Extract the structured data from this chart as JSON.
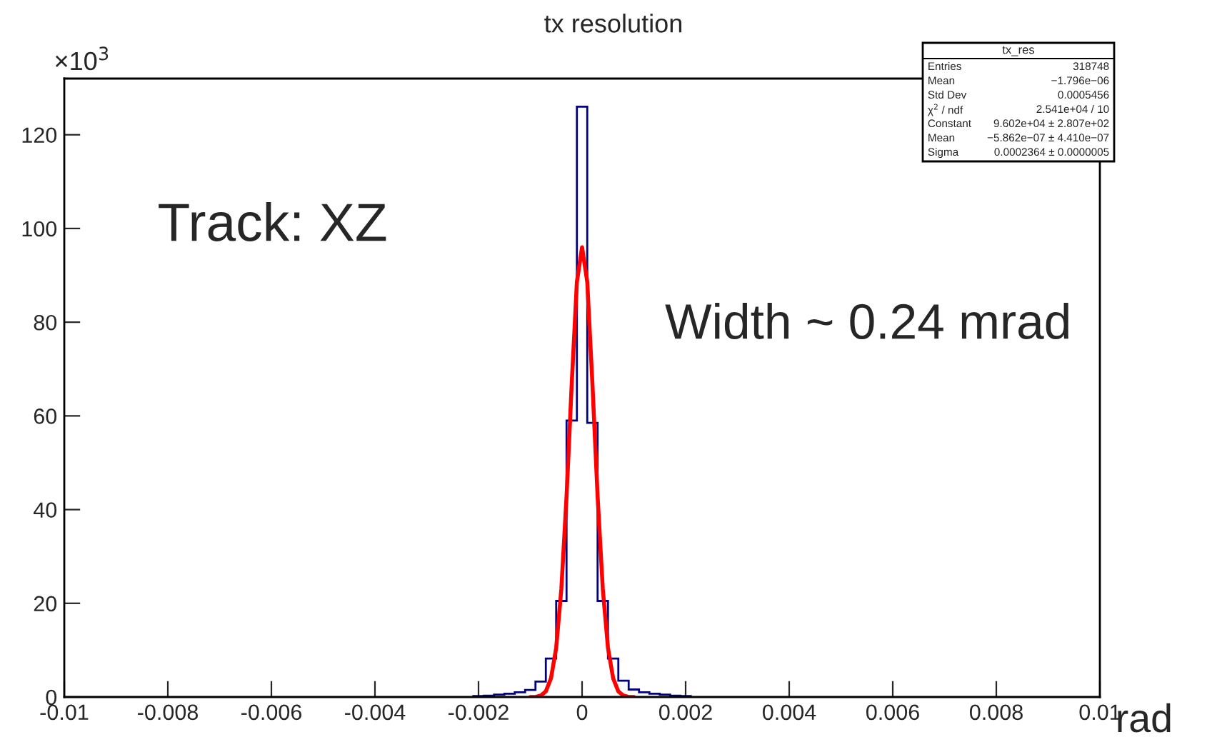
{
  "chart_data": {
    "type": "histogram",
    "title": "tx resolution",
    "xlabel": "rad",
    "ylabel": "×10$^{3}$",
    "bins": [
      -0.0021,
      -0.0019,
      -0.0017,
      -0.0015,
      -0.0013,
      -0.0011,
      -0.0009,
      -0.0007,
      -0.0005,
      -0.0003,
      -0.0001,
      0.0001,
      0.0003,
      0.0005,
      0.0007,
      0.0009,
      0.0011,
      0.0013,
      0.0015,
      0.0017,
      0.0019,
      0.0021
    ],
    "values": [
      0.2,
      0.3,
      0.5,
      0.7,
      1.0,
      1.5,
      3.3,
      8.2,
      20.5,
      59,
      126,
      58.5,
      20.5,
      8.2,
      3.5,
      1.6,
      1.0,
      0.7,
      0.5,
      0.3,
      0.2
    ],
    "color": "#000080",
    "series": [
      {
        "type": "line",
        "color": "#ff0000",
        "x": [
          -0.001,
          -0.0009,
          -0.0008,
          -0.0007,
          -0.0006,
          -0.0005,
          -0.0004,
          -0.0003,
          -0.0002,
          -0.0001,
          0,
          0.0001,
          0.0002,
          0.0003,
          0.0004,
          0.0005,
          0.0006,
          0.0007,
          0.0008,
          0.0009,
          0.001
        ],
        "values": [
          0,
          0,
          0.3,
          1.2,
          4.0,
          10.5,
          23.1,
          42.8,
          66.8,
          88.6,
          96,
          88.6,
          66.8,
          42.8,
          23.1,
          10.5,
          4.0,
          1.2,
          0.3,
          0,
          0
        ]
      }
    ],
    "xlim": [
      -0.01,
      0.01
    ],
    "xticks": [
      {
        "value": -0.01,
        "label": "-0.01"
      },
      {
        "value": -0.008,
        "label": "-0.008"
      },
      {
        "value": -0.006,
        "label": "-0.006"
      },
      {
        "value": -0.004,
        "label": "-0.004"
      },
      {
        "value": -0.002,
        "label": "-0.002"
      },
      0,
      {
        "value": 0.002,
        "label": "0.002"
      },
      {
        "value": 0.004,
        "label": "0.004"
      },
      {
        "value": 0.006,
        "label": "0.006"
      },
      {
        "value": 0.008,
        "label": "0.008"
      },
      {
        "value": 0.01,
        "label": "0.01"
      }
    ],
    "ylim": [
      0,
      132
    ],
    "yticks": [
      0,
      20,
      40,
      60,
      80,
      100,
      120
    ],
    "grid": false,
    "annotations": [
      "Track: XZ",
      "Width ~ 0.24 mrad",
      "tx_res",
      "Entries",
      "318748",
      "Mean",
      "−1.796e−06",
      "Std Dev",
      "0.0005456",
      "χ$^{2}$ / ndf",
      "2.541e+04 / 10",
      "Constant",
      "9.602e+04 ± 2.807e+02",
      "Mean",
      "−5.862e−07 ± 4.410e−07",
      "Sigma",
      "0.0002364 ± 0.0000005"
    ]
  }
}
